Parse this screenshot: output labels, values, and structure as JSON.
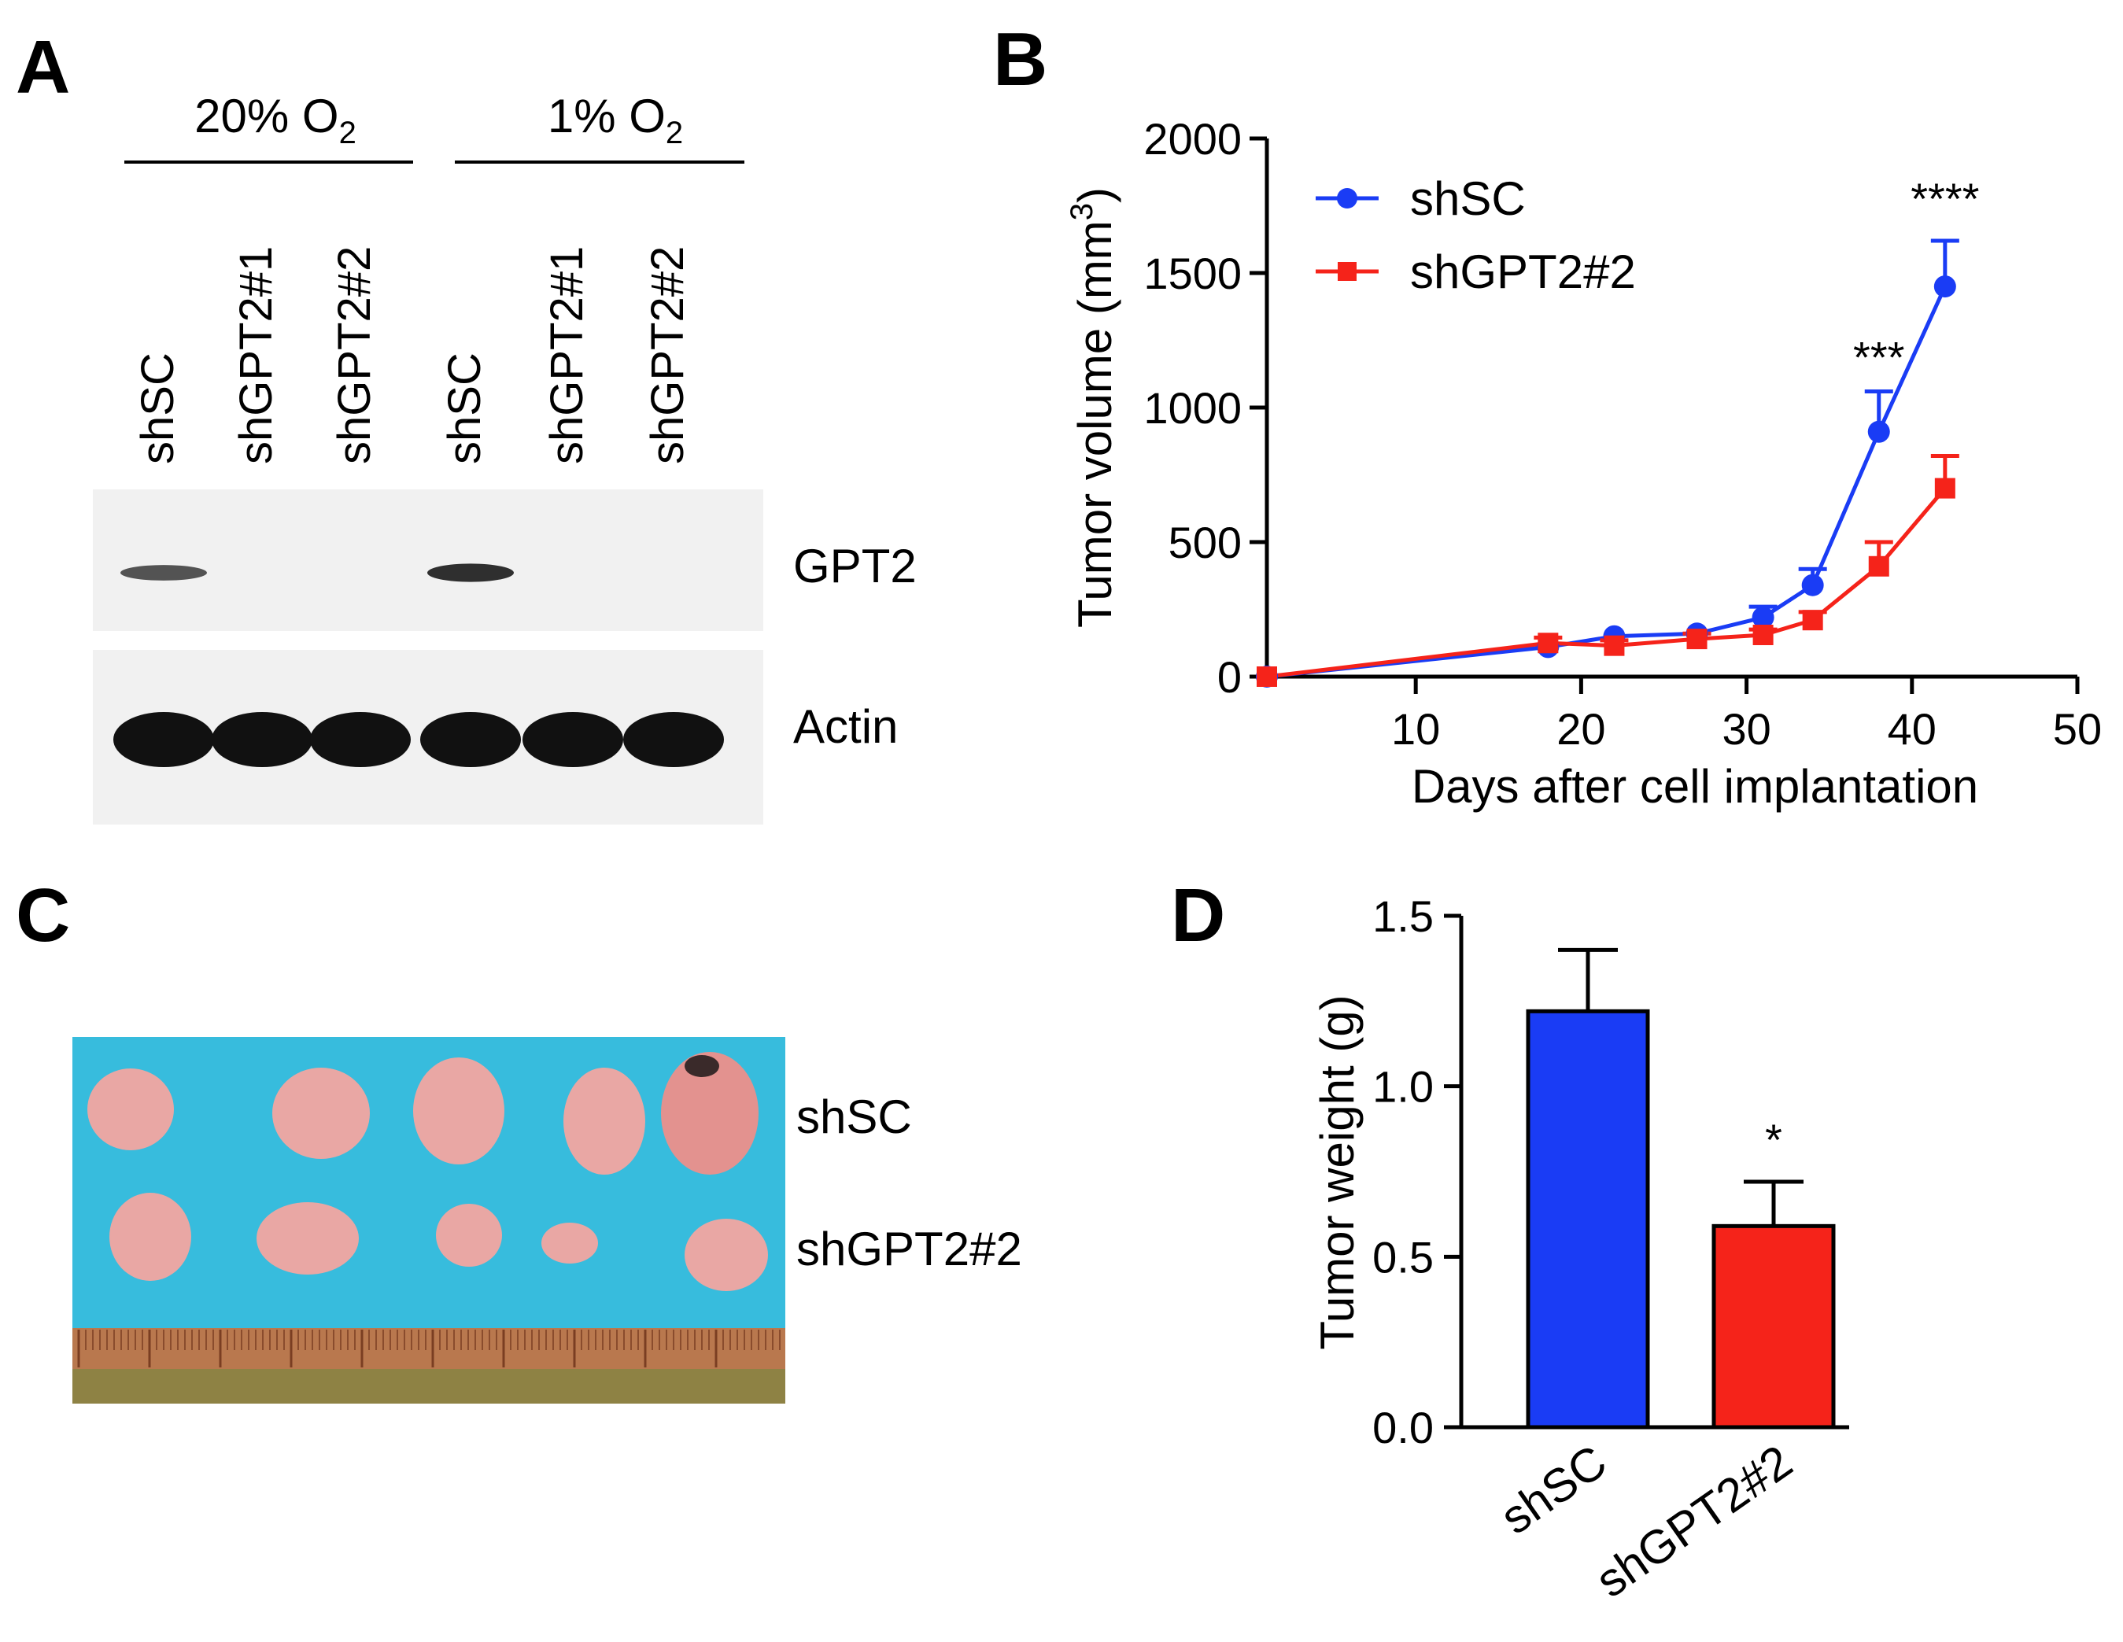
{
  "panels": {
    "A": {
      "label": "A",
      "conditions": [
        {
          "text": "20% O",
          "sub": "2"
        },
        {
          "text": "1% O",
          "sub": "2"
        }
      ],
      "lanes": [
        "shSC",
        "shGPT2#1",
        "shGPT2#2",
        "shSC",
        "shGPT2#1",
        "shGPT2#2"
      ],
      "blots": [
        {
          "name": "GPT2",
          "band_intensity": [
            0.55,
            0,
            0,
            0.8,
            0,
            0
          ]
        },
        {
          "name": "Actin",
          "band_intensity": [
            1,
            1,
            1,
            1,
            1,
            1
          ]
        }
      ]
    },
    "C": {
      "label": "C",
      "rows": [
        "shSC",
        "shGPT2#2"
      ]
    }
  },
  "colors": {
    "shSC": "#1a3cf5",
    "shGPT2": "#f5231a",
    "dish": "#2ab6d8",
    "tumor": "#e9a7a4",
    "ruler": "#b9784e"
  },
  "chart_data": [
    {
      "panel": "B",
      "type": "line",
      "xlabel": "Days after cell implantation",
      "ylabel": "Tumor volume (mm",
      "ylabel_sup": "3",
      "ylabel_end": ")",
      "xlim": [
        1,
        50
      ],
      "ylim": [
        0,
        2000
      ],
      "xticks": [
        10,
        20,
        30,
        40,
        50
      ],
      "yticks": [
        0,
        500,
        1000,
        1500,
        2000
      ],
      "legend_position": "top-left",
      "series": [
        {
          "name": "shSC",
          "marker": "circle",
          "color": "#1a3cf5",
          "x": [
            1,
            18,
            22,
            27,
            31,
            34,
            38,
            42
          ],
          "y": [
            0,
            110,
            150,
            160,
            220,
            340,
            910,
            1450
          ],
          "err": [
            0,
            0,
            0,
            0,
            40,
            60,
            150,
            170
          ]
        },
        {
          "name": "shGPT2#2",
          "marker": "square",
          "color": "#f5231a",
          "x": [
            1,
            18,
            22,
            27,
            31,
            34,
            38,
            42
          ],
          "y": [
            0,
            125,
            115,
            140,
            155,
            210,
            410,
            700
          ],
          "err": [
            0,
            20,
            20,
            20,
            20,
            30,
            90,
            120
          ]
        }
      ],
      "annotations": [
        {
          "x": 38,
          "y": 1130,
          "text": "***"
        },
        {
          "x": 42,
          "y": 1720,
          "text": "****"
        }
      ]
    },
    {
      "panel": "D",
      "type": "bar",
      "ylabel": "Tumor weight (g)",
      "ylim": [
        0,
        1.5
      ],
      "yticks": [
        "0.0",
        "0.5",
        "1.0",
        "1.5"
      ],
      "categories": [
        "shSC",
        "shGPT2#2"
      ],
      "values": [
        1.22,
        0.59
      ],
      "errors": [
        0.18,
        0.13
      ],
      "colors": [
        "#1a3cf5",
        "#f5231a"
      ],
      "annotations": [
        {
          "category": "shGPT2#2",
          "text": "*"
        }
      ]
    }
  ]
}
